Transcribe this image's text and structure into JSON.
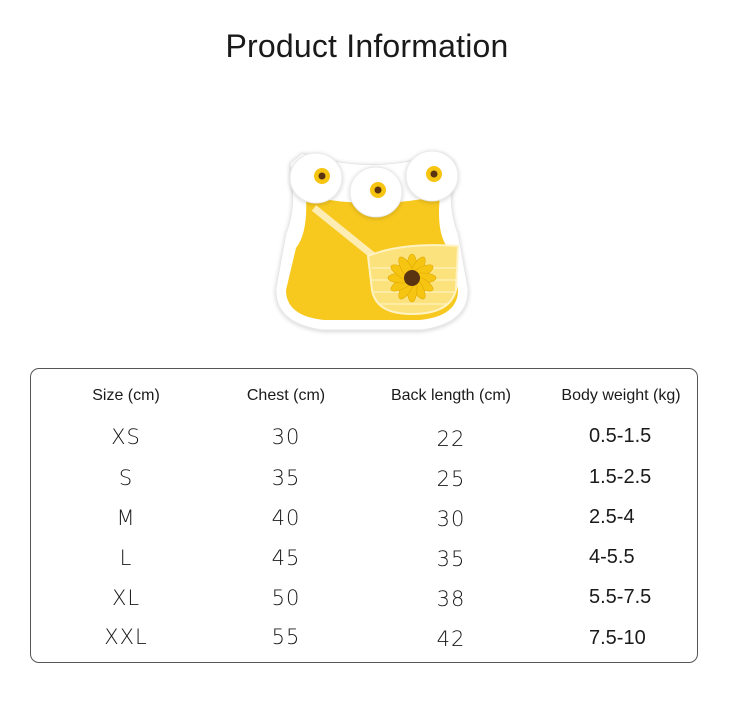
{
  "title": "Product Information",
  "colors": {
    "vest_yellow": "#f7c81e",
    "trim_white": "#ffffff",
    "sunflower_petal": "#f6c512",
    "sunflower_center": "#5a3410",
    "border": "#555555"
  },
  "table": {
    "headers": [
      "Size (cm)",
      "Chest (cm)",
      "Back length (cm)",
      "Body weight (kg)"
    ],
    "rows": [
      [
        "XS",
        "30",
        "22",
        "0.5-1.5"
      ],
      [
        "S",
        "35",
        "25",
        "1.5-2.5"
      ],
      [
        "M",
        "40",
        "30",
        "2.5-4"
      ],
      [
        "L",
        "45",
        "35",
        "4-5.5"
      ],
      [
        "XL",
        "50",
        "38",
        "5.5-7.5"
      ],
      [
        "XXL",
        "55",
        "42",
        "7.5-10"
      ]
    ]
  }
}
